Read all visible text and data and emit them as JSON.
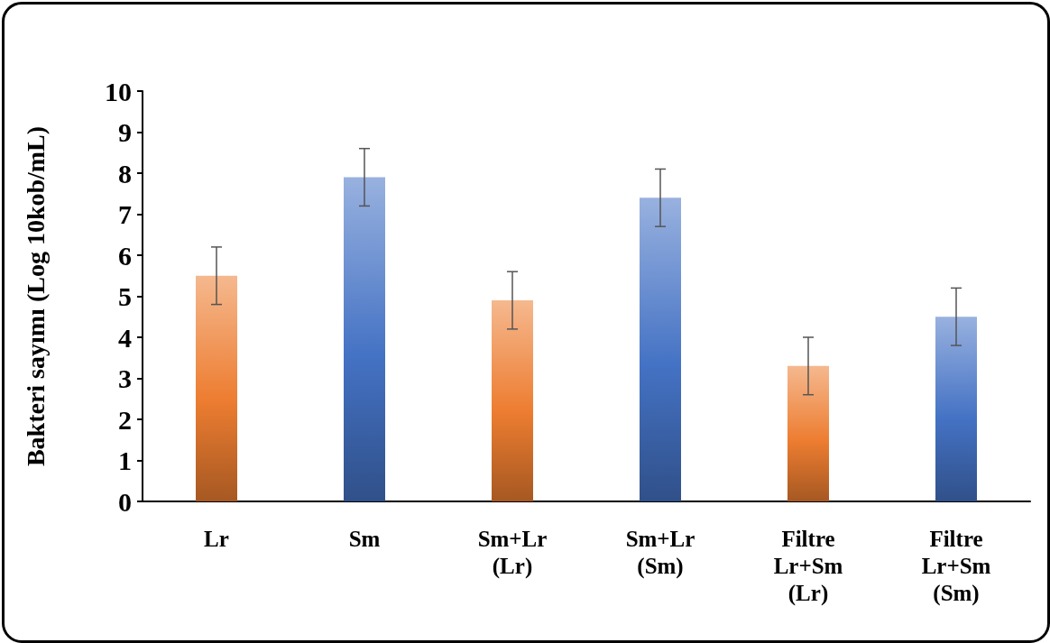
{
  "chart_data": {
    "type": "bar",
    "ylabel": "Bakteri sayımı (Log 10kob/mL)",
    "categories": [
      "Lr",
      "Sm",
      "Sm+Lr\n(Lr)",
      "Sm+Lr\n(Sm)",
      "Filtre\nLr+Sm\n(Lr)",
      "Filtre\nLr+Sm\n(Sm)"
    ],
    "values": [
      5.5,
      7.9,
      4.9,
      7.4,
      3.3,
      4.5
    ],
    "errors": [
      0.7,
      0.7,
      0.7,
      0.7,
      0.7,
      0.7
    ],
    "colors": [
      "#ed7d31",
      "#4472c4",
      "#ed7d31",
      "#4472c4",
      "#ed7d31",
      "#4472c4"
    ],
    "ylim": [
      0,
      10
    ],
    "yticks": [
      0,
      1,
      2,
      3,
      4,
      5,
      6,
      7,
      8,
      9,
      10
    ],
    "grid": false
  }
}
